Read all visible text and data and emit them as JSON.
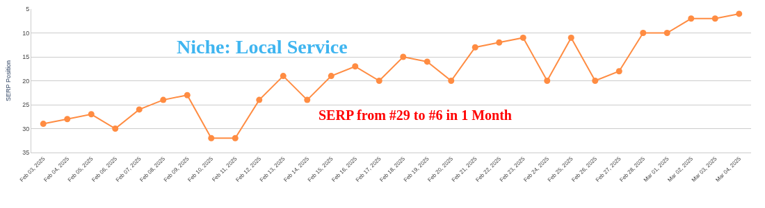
{
  "chart_data": {
    "type": "line",
    "ylabel": "SERP Position",
    "categories": [
      "Feb 03, 2025",
      "Feb 04, 2025",
      "Feb 05, 2025",
      "Feb 06, 2025",
      "Feb 07, 2025",
      "Feb 08, 2025",
      "Feb 09, 2025",
      "Feb 10, 2025",
      "Feb 11, 2025",
      "Feb 12, 2025",
      "Feb 13, 2025",
      "Feb 14, 2025",
      "Feb 15, 2025",
      "Feb 16, 2025",
      "Feb 17, 2025",
      "Feb 18, 2025",
      "Feb 19, 2025",
      "Feb 20, 2025",
      "Feb 21, 2025",
      "Feb 22, 2025",
      "Feb 23, 2025",
      "Feb 24, 2025",
      "Feb 25, 2025",
      "Feb 26, 2025",
      "Feb 27, 2025",
      "Feb 28, 2025",
      "Mar 01, 2025",
      "Mar 02, 2025",
      "Mar 03, 2025",
      "Mar 04, 2025"
    ],
    "series": [
      {
        "color": "#ff8c42",
        "values": [
          29,
          28,
          27,
          30,
          26,
          24,
          23,
          32,
          32,
          24,
          19,
          24,
          19,
          17,
          20,
          15,
          16,
          20,
          13,
          12,
          11,
          20,
          11,
          20,
          18,
          10,
          10,
          7,
          7,
          6
        ]
      }
    ],
    "ylim": [
      35,
      5
    ],
    "yticks": [
      5,
      10,
      15,
      20,
      25,
      30,
      35
    ],
    "grid": "y",
    "marker": "circle",
    "line_style": "solid",
    "annotations": [
      "Niche: Local Service",
      "SERP from #29 to #6 in 1 Month"
    ]
  }
}
